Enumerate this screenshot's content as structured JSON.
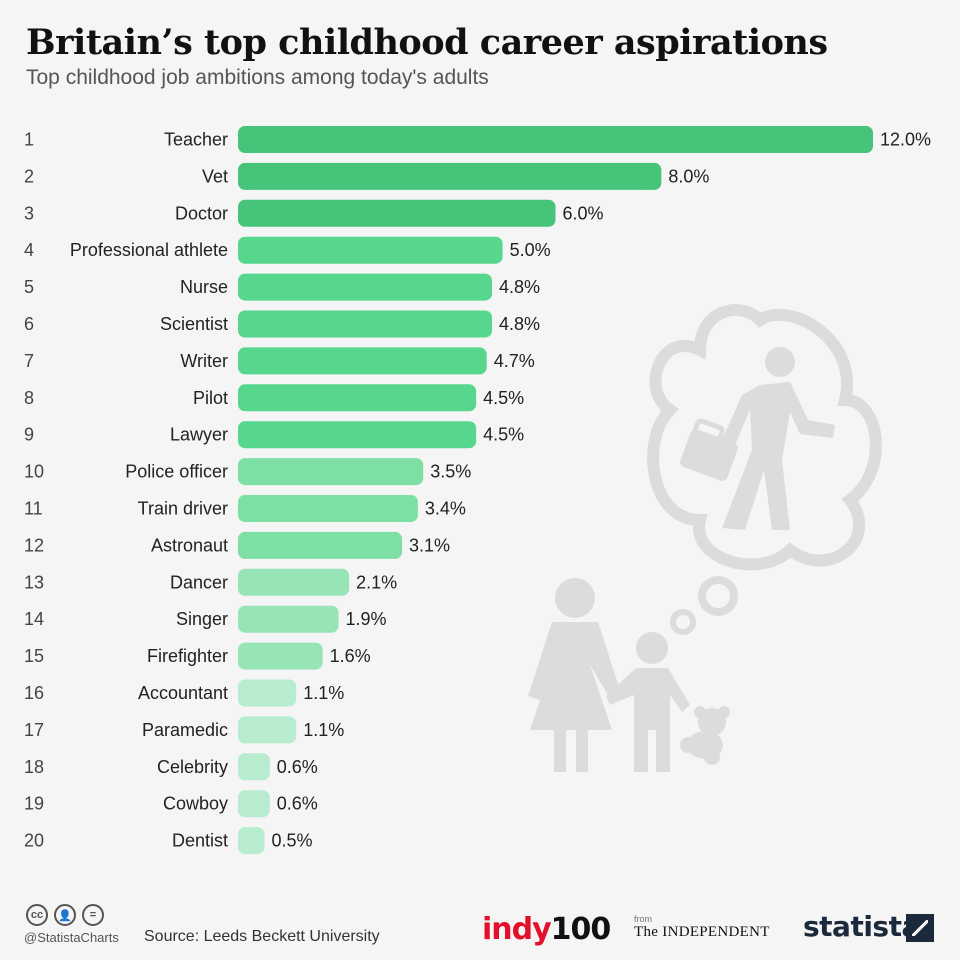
{
  "header": {
    "title": "Britain’s top childhood career aspirations",
    "subtitle": "Top childhood job ambitions among today's adults"
  },
  "chart_data": {
    "type": "bar",
    "orientation": "horizontal",
    "title": "Britain’s top childhood career aspirations",
    "subtitle": "Top childhood job ambitions among today's adults",
    "xlabel": "",
    "ylabel": "",
    "xlim": [
      0,
      12
    ],
    "grid": false,
    "ranks": [
      "1",
      "2",
      "3",
      "4",
      "5",
      "6",
      "7",
      "8",
      "9",
      "10",
      "11",
      "12",
      "13",
      "14",
      "15",
      "16",
      "17",
      "18",
      "19",
      "20"
    ],
    "categories": [
      "Teacher",
      "Vet",
      "Doctor",
      "Professional athlete",
      "Nurse",
      "Scientist",
      "Writer",
      "Pilot",
      "Lawyer",
      "Police officer",
      "Train driver",
      "Astronaut",
      "Dancer",
      "Singer",
      "Firefighter",
      "Accountant",
      "Paramedic",
      "Celebrity",
      "Cowboy",
      "Dentist"
    ],
    "values": [
      12.0,
      8.0,
      6.0,
      5.0,
      4.8,
      4.8,
      4.7,
      4.5,
      4.5,
      3.5,
      3.4,
      3.1,
      2.1,
      1.9,
      1.6,
      1.1,
      1.1,
      0.6,
      0.6,
      0.5
    ],
    "value_labels": [
      "12.0%",
      "8.0%",
      "6.0%",
      "5.0%",
      "4.8%",
      "4.8%",
      "4.7%",
      "4.5%",
      "4.5%",
      "3.5%",
      "3.4%",
      "3.1%",
      "2.1%",
      "1.9%",
      "1.6%",
      "1.1%",
      "1.1%",
      "0.6%",
      "0.6%",
      "0.5%"
    ],
    "colors": [
      "#45c47a",
      "#45c47a",
      "#45c47a",
      "#57d78e",
      "#57d78e",
      "#57d78e",
      "#57d78e",
      "#57d78e",
      "#57d78e",
      "#7ddfa4",
      "#7ddfa4",
      "#7ddfa4",
      "#97e4b7",
      "#97e4b7",
      "#97e4b7",
      "#b7ecce",
      "#b7ecce",
      "#b7ecce",
      "#b7ecce",
      "#b7ecce"
    ]
  },
  "illustration": {
    "icon": "parent-child-dreaming-businessman-icon",
    "color": "#dcdcdc"
  },
  "footer": {
    "license_icons": [
      "cc",
      "by",
      "="
    ],
    "handle": "@StatistaCharts",
    "source": "Source: Leeds Beckett University",
    "logo_indy_red": "indy",
    "logo_indy_black": "100",
    "logo_from": "from",
    "logo_independent": "The INDEPENDENT",
    "logo_statista": "statista"
  }
}
